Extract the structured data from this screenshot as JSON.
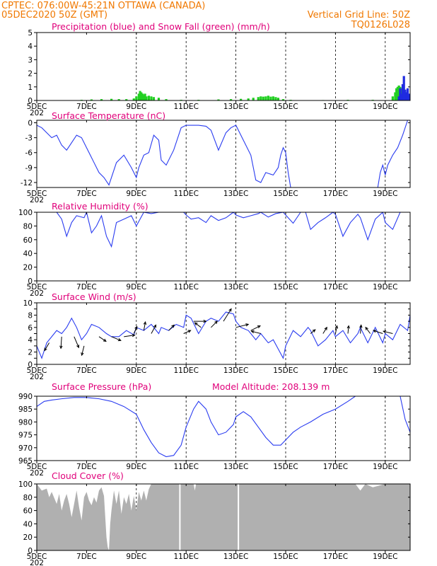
{
  "header": {
    "left_line1": "CPTEC:   076:00W-45:21N   OTTAWA (CANADA)",
    "left_line2": "05DEC2020 50Z (GMT)",
    "right_line1": "Vertical Grid Line: 50Z",
    "right_line2": "TQ0126L028"
  },
  "colors": {
    "header": "#f07800",
    "title": "#e0007a",
    "line": "#2a3cf0",
    "precip": "#1f2be0",
    "snow": "#22d022",
    "cloud": "#b0b0b0",
    "wind_arrow": "#000000"
  },
  "x_axis": {
    "first_tick_label": "5DEC",
    "tick_labels": [
      "5DEC",
      "7DEC",
      "9DEC",
      "11DEC",
      "13DEC",
      "15DEC",
      "17DEC",
      "19DEC"
    ],
    "tick_days": [
      5,
      7,
      9,
      11,
      13,
      15,
      17,
      19
    ],
    "range_days": [
      5,
      20
    ],
    "vertical_grid_days": [
      9,
      11,
      13,
      15,
      17,
      19
    ],
    "year_fragment": "202"
  },
  "chart_data": [
    {
      "id": "precip",
      "type": "bar",
      "title": "Precipitation (blue) and Snow Fall (green) (mm/h)",
      "ylim": [
        0,
        5
      ],
      "yticks": [
        0,
        1,
        2,
        3,
        4,
        5
      ],
      "series": [
        {
          "name": "Precipitation",
          "color": "#1f2be0",
          "x": [
            19.55,
            19.6,
            19.65,
            19.7,
            19.75,
            19.8,
            19.85,
            19.9,
            19.95
          ],
          "values": [
            0.3,
            0.9,
            0.5,
            1.2,
            1.8,
            0.8,
            0.6,
            0.9,
            0.5
          ]
        },
        {
          "name": "Snow Fall",
          "color": "#22d022",
          "x": [
            6.8,
            7.2,
            7.6,
            8.0,
            8.3,
            8.6,
            8.9,
            9.0,
            9.1,
            9.15,
            9.2,
            9.25,
            9.3,
            9.35,
            9.4,
            9.5,
            9.6,
            9.7,
            9.9,
            10.2,
            10.8,
            11.5,
            12.3,
            12.8,
            13.2,
            13.5,
            13.7,
            13.9,
            14.0,
            14.1,
            14.2,
            14.3,
            14.4,
            14.5,
            14.6,
            14.7,
            14.9,
            15.2,
            16.5,
            17.5,
            18.5,
            19.3,
            19.4,
            19.45,
            19.5,
            19.55,
            19.6,
            19.65,
            19.7,
            19.75,
            19.8,
            19.85,
            19.9,
            19.95
          ],
          "values": [
            0.05,
            0.08,
            0.1,
            0.12,
            0.1,
            0.1,
            0.15,
            0.3,
            0.5,
            0.7,
            0.6,
            0.5,
            0.4,
            0.5,
            0.3,
            0.35,
            0.3,
            0.25,
            0.2,
            0.1,
            0.05,
            0.05,
            0.08,
            0.1,
            0.12,
            0.15,
            0.2,
            0.25,
            0.3,
            0.28,
            0.3,
            0.35,
            0.28,
            0.3,
            0.25,
            0.2,
            0.1,
            0.05,
            0.03,
            0.05,
            0.05,
            0.3,
            0.6,
            0.9,
            1.0,
            1.1,
            1.0,
            0.9,
            0.8,
            0.7,
            0.6,
            0.5,
            0.4,
            0.3
          ]
        }
      ]
    },
    {
      "id": "temperature",
      "type": "line",
      "title": "Surface Temperature (nC)",
      "ylim": [
        -13,
        0.5
      ],
      "yticks": [
        0,
        -3,
        -6,
        -9,
        -12
      ],
      "ytick_labels": [
        "0",
        "-3",
        "-6",
        "-9",
        "-12"
      ],
      "segments": [
        {
          "x": [
            5.0,
            5.2,
            5.4,
            5.6,
            5.8,
            6.0,
            6.2,
            6.4,
            6.6,
            6.8,
            7.0,
            7.3,
            7.5,
            7.7,
            7.9,
            8.0,
            8.2,
            8.5,
            8.8,
            9.0,
            9.1,
            9.3,
            9.5,
            9.7,
            9.9,
            10.0,
            10.2,
            10.5,
            10.8,
            11.0,
            11.2,
            11.5,
            11.8,
            12.0,
            12.3,
            12.6,
            12.8,
            13.0,
            13.3,
            13.6,
            13.8,
            14.0,
            14.2,
            14.5,
            14.7,
            14.8,
            14.9,
            15.0,
            15.1,
            15.2
          ],
          "y": [
            -0.5,
            -1.0,
            -2.0,
            -3.0,
            -2.5,
            -4.5,
            -5.5,
            -4.0,
            -2.5,
            -3.0,
            -5.0,
            -8.0,
            -10.0,
            -11.0,
            -12.5,
            -11.0,
            -8.0,
            -6.5,
            -9.0,
            -11.0,
            -9.0,
            -6.5,
            -6.0,
            -2.5,
            -3.5,
            -7.5,
            -8.5,
            -5.5,
            -1.0,
            -0.5,
            -0.5,
            -0.5,
            -0.7,
            -1.5,
            -5.5,
            -2.0,
            -1.0,
            -0.5,
            -3.5,
            -6.5,
            -11.5,
            -12.0,
            -10.0,
            -10.5,
            -9.0,
            -6.5,
            -5.0,
            -6.0,
            -10.0,
            -13.0
          ]
        },
        {
          "x": [
            18.7,
            18.8,
            18.9,
            19.0,
            19.1,
            19.3,
            19.5,
            19.7,
            19.9,
            20.0
          ],
          "y": [
            -13.0,
            -10.0,
            -8.5,
            -10.5,
            -8.5,
            -6.5,
            -5.0,
            -2.5,
            0.5,
            0.5
          ]
        }
      ]
    },
    {
      "id": "humidity",
      "type": "line",
      "title": "Relative Humidity (%)",
      "ylim": [
        0,
        100
      ],
      "yticks": [
        0,
        20,
        40,
        60,
        80,
        100
      ],
      "segments": [
        {
          "x": [
            5.0,
            5.5,
            5.8,
            6.0,
            6.2,
            6.4,
            6.6,
            6.9,
            7.0,
            7.2,
            7.4,
            7.6,
            7.8,
            8.0,
            8.2,
            8.5,
            8.8,
            9.0,
            9.3,
            9.6,
            9.9,
            10.0,
            10.3,
            10.6,
            10.9,
            11.0,
            11.2,
            11.5,
            11.8,
            12.0,
            12.3,
            12.6,
            12.9,
            13.0,
            13.3,
            13.6,
            13.9,
            14.0,
            14.3,
            14.6,
            14.9,
            15.0,
            15.3,
            15.6,
            15.8,
            16.0,
            16.3,
            16.6,
            16.9,
            17.0,
            17.3,
            17.6,
            17.9,
            18.0,
            18.3,
            18.6,
            18.9,
            19.0,
            19.3,
            19.6,
            20.0
          ],
          "y": [
            100,
            100,
            100,
            90,
            65,
            85,
            95,
            92,
            100,
            70,
            80,
            95,
            65,
            50,
            85,
            90,
            95,
            80,
            100,
            98,
            100,
            100,
            100,
            100,
            100,
            96,
            90,
            92,
            85,
            95,
            88,
            92,
            100,
            96,
            92,
            95,
            98,
            100,
            93,
            98,
            100,
            96,
            84,
            100,
            100,
            75,
            85,
            92,
            100,
            97,
            65,
            85,
            97,
            92,
            60,
            90,
            100,
            85,
            75,
            100,
            100
          ]
        }
      ]
    },
    {
      "id": "wind",
      "type": "line",
      "title": "Surface Wind (m/s)",
      "ylim": [
        0,
        10
      ],
      "yticks": [
        0,
        1,
        2,
        3,
        4,
        5,
        6,
        7,
        8,
        9,
        10
      ],
      "ytick_labels": [
        "0",
        "",
        "2",
        "",
        "4",
        "",
        "6",
        "",
        "8",
        "",
        "10"
      ],
      "segments": [
        {
          "x": [
            5.0,
            5.2,
            5.4,
            5.6,
            5.8,
            6.0,
            6.2,
            6.4,
            6.6,
            6.8,
            7.0,
            7.2,
            7.5,
            7.8,
            8.0,
            8.3,
            8.6,
            8.9,
            9.0,
            9.3,
            9.6,
            9.9,
            10.0,
            10.3,
            10.6,
            10.9,
            11.0,
            11.2,
            11.5,
            11.8,
            12.0,
            12.3,
            12.6,
            12.9,
            13.0,
            13.2,
            13.5,
            13.8,
            14.0,
            14.3,
            14.5,
            14.7,
            14.9,
            15.0,
            15.3,
            15.6,
            15.9,
            16.0,
            16.3,
            16.6,
            16.9,
            17.0,
            17.3,
            17.6,
            17.9,
            18.0,
            18.3,
            18.6,
            18.9,
            19.0,
            19.3,
            19.6,
            19.9,
            20.0
          ],
          "y": [
            3.0,
            1.0,
            3.5,
            4.5,
            5.5,
            5.0,
            6.0,
            7.5,
            6.0,
            4.0,
            5.0,
            6.5,
            6.0,
            5.0,
            4.5,
            4.5,
            5.5,
            4.8,
            6.0,
            5.5,
            6.5,
            5.0,
            6.0,
            5.5,
            6.5,
            6.0,
            8.0,
            7.5,
            5.0,
            7.0,
            7.5,
            7.0,
            8.5,
            8.2,
            7.0,
            6.0,
            5.5,
            4.0,
            5.0,
            3.5,
            4.0,
            2.5,
            1.0,
            3.0,
            5.5,
            4.5,
            6.0,
            5.5,
            3.0,
            4.0,
            5.5,
            4.5,
            5.5,
            3.5,
            5.0,
            6.0,
            3.5,
            6.0,
            3.5,
            5.0,
            4.0,
            6.5,
            5.5,
            8.0
          ]
        }
      ],
      "wind_arrows": [
        {
          "x": 5.5,
          "u": -0.6,
          "v": -1.0,
          "speed": 3.5
        },
        {
          "x": 6.0,
          "u": -0.1,
          "v": -1.5,
          "speed": 4.5
        },
        {
          "x": 6.5,
          "u": 0.6,
          "v": -1.4,
          "speed": 4.5
        },
        {
          "x": 6.9,
          "u": -0.3,
          "v": -1.2,
          "speed": 3.0
        },
        {
          "x": 7.5,
          "u": 0.9,
          "v": -0.6,
          "speed": 4.5
        },
        {
          "x": 8.0,
          "u": 1.2,
          "v": -0.5,
          "speed": 4.5
        },
        {
          "x": 8.5,
          "u": 1.4,
          "v": 0.2,
          "speed": 4.5
        },
        {
          "x": 8.9,
          "u": 0.4,
          "v": 0.9,
          "speed": 5.0
        },
        {
          "x": 9.3,
          "u": 0.2,
          "v": 1.1,
          "speed": 5.5
        },
        {
          "x": 9.6,
          "u": 0.6,
          "v": 1.1,
          "speed": 5.0
        },
        {
          "x": 10.3,
          "u": 0.7,
          "v": 0.7,
          "speed": 5.5
        },
        {
          "x": 10.9,
          "u": 0.9,
          "v": 0.4,
          "speed": 5.0
        },
        {
          "x": 11.3,
          "u": 1.6,
          "v": 0.0,
          "speed": 7.0
        },
        {
          "x": 11.6,
          "u": -0.8,
          "v": 0.6,
          "speed": 6.0
        },
        {
          "x": 12.0,
          "u": 0.8,
          "v": 0.8,
          "speed": 6.0
        },
        {
          "x": 12.5,
          "u": 1.0,
          "v": 1.6,
          "speed": 7.0
        },
        {
          "x": 13.0,
          "u": 1.6,
          "v": 0.4,
          "speed": 6.0
        },
        {
          "x": 13.6,
          "u": 1.2,
          "v": 0.6,
          "speed": 5.5
        },
        {
          "x": 14.0,
          "u": -1.2,
          "v": 0.3,
          "speed": 5.0
        },
        {
          "x": 16.0,
          "u": 0.6,
          "v": 0.5,
          "speed": 5.0
        },
        {
          "x": 16.5,
          "u": 0.5,
          "v": 0.8,
          "speed": 5.0
        },
        {
          "x": 17.0,
          "u": 0.2,
          "v": 1.0,
          "speed": 5.0
        },
        {
          "x": 17.5,
          "u": 0.1,
          "v": 1.0,
          "speed": 5.0
        },
        {
          "x": 18.0,
          "u": 0.1,
          "v": 1.1,
          "speed": 5.0
        },
        {
          "x": 18.4,
          "u": -0.6,
          "v": 0.8,
          "speed": 5.0
        },
        {
          "x": 18.9,
          "u": -1.2,
          "v": 0.4,
          "speed": 5.0
        },
        {
          "x": 19.3,
          "u": -1.2,
          "v": 0.3,
          "speed": 5.0
        }
      ]
    },
    {
      "id": "pressure",
      "type": "line",
      "title": "Surface Pressure (hPa)",
      "annotation": "Model Altitude: 208.139  m",
      "ylim": [
        965,
        990
      ],
      "yticks": [
        965,
        970,
        975,
        980,
        985,
        990
      ],
      "segments": [
        {
          "x": [
            5.0,
            5.3,
            5.6,
            6.0,
            6.5,
            7.0,
            7.5,
            8.0,
            8.5,
            9.0,
            9.3,
            9.6,
            9.9,
            10.2,
            10.5,
            10.8,
            11.0,
            11.3,
            11.5,
            11.8,
            12.0,
            12.3,
            12.6,
            12.9,
            13.0,
            13.3,
            13.6,
            13.9,
            14.2,
            14.5,
            14.8,
            15.0,
            15.3,
            15.6,
            16.0,
            16.5,
            17.0,
            17.5,
            17.8
          ],
          "y": [
            986,
            988,
            988.5,
            989,
            989.5,
            989.5,
            989,
            988,
            986,
            983,
            977,
            972,
            968,
            966.5,
            967,
            971,
            978,
            985,
            988,
            985,
            980,
            975,
            976,
            979,
            982,
            984,
            982,
            978,
            974,
            971,
            971,
            973,
            976,
            978,
            980,
            983,
            985,
            988,
            990
          ]
        },
        {
          "x": [
            19.6,
            19.8,
            20.0
          ],
          "y": [
            990,
            981,
            976
          ]
        }
      ]
    },
    {
      "id": "cloud",
      "type": "area",
      "title": "Cloud Cover (%)",
      "ylim": [
        0,
        100
      ],
      "yticks": [
        0,
        20,
        40,
        60,
        80,
        100
      ],
      "x": [
        5.0,
        5.2,
        5.4,
        5.5,
        5.6,
        5.8,
        5.9,
        6.0,
        6.1,
        6.2,
        6.3,
        6.4,
        6.5,
        6.6,
        6.7,
        6.8,
        6.9,
        7.0,
        7.1,
        7.2,
        7.3,
        7.4,
        7.5,
        7.6,
        7.7,
        7.8,
        7.85,
        7.9,
        7.95,
        8.0,
        8.1,
        8.2,
        8.3,
        8.4,
        8.5,
        8.6,
        8.7,
        8.8,
        8.9,
        9.0,
        9.1,
        9.2,
        9.3,
        9.4,
        9.5,
        9.6,
        10.0,
        10.5,
        11.0,
        11.3,
        11.35,
        11.4,
        11.6,
        12.0,
        13.0,
        14.0,
        15.0,
        16.0,
        17.0,
        17.5,
        17.8,
        17.9,
        18.0,
        18.2,
        18.5,
        19.0,
        19.5,
        19.6,
        20.0
      ],
      "values": [
        100,
        90,
        93,
        80,
        88,
        70,
        85,
        60,
        75,
        85,
        70,
        50,
        70,
        90,
        65,
        45,
        80,
        88,
        75,
        68,
        80,
        72,
        90,
        95,
        82,
        20,
        5,
        0,
        40,
        60,
        90,
        70,
        90,
        55,
        80,
        70,
        85,
        60,
        82,
        60,
        88,
        75,
        90,
        75,
        92,
        100,
        100,
        100,
        100,
        100,
        90,
        100,
        100,
        100,
        100,
        100,
        100,
        100,
        100,
        100,
        100,
        95,
        90,
        100,
        95,
        100,
        100,
        100,
        100
      ],
      "gaps": [
        10.75,
        13.1
      ]
    }
  ]
}
